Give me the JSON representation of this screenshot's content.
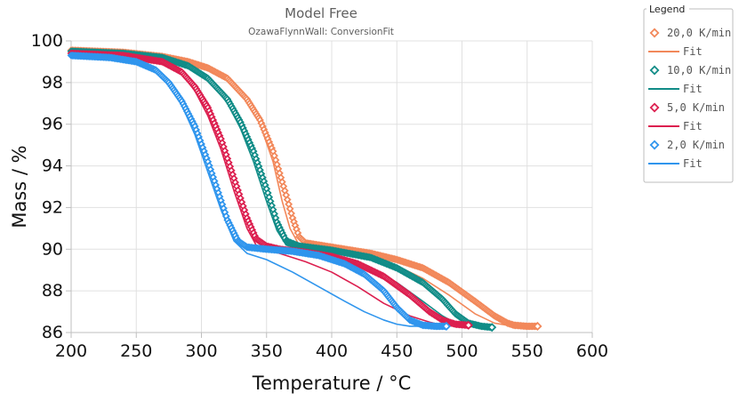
{
  "chart_data": {
    "type": "line",
    "title": "Model Free",
    "subtitle": "OzawaFlynnWall: ConversionFit",
    "xlabel": "Temperature / °C",
    "ylabel": "Mass / %",
    "xlim": [
      200,
      600
    ],
    "ylim": [
      86,
      100
    ],
    "x_ticks": [
      200,
      250,
      300,
      350,
      400,
      450,
      500,
      550,
      600
    ],
    "y_ticks": [
      86,
      88,
      90,
      92,
      94,
      96,
      98,
      100
    ],
    "x_tick_labels": [
      "200",
      "250",
      "300",
      "350",
      "400",
      "450",
      "500",
      "550",
      "600"
    ],
    "y_tick_labels": [
      "86",
      "88",
      "90",
      "92",
      "94",
      "96",
      "98",
      "100"
    ],
    "grid": true,
    "legend": {
      "title": "Legend",
      "placement": "right",
      "entries": [
        {
          "label": "20,0 K/min",
          "marker": "diamond",
          "color": "#f2885a"
        },
        {
          "label": "Fit",
          "marker": "line",
          "color": "#f2885a"
        },
        {
          "label": "10,0 K/min",
          "marker": "diamond",
          "color": "#118c87"
        },
        {
          "label": "Fit",
          "marker": "line",
          "color": "#118c87"
        },
        {
          "label": "5,0 K/min",
          "marker": "diamond",
          "color": "#dc1f4f"
        },
        {
          "label": "Fit",
          "marker": "line",
          "color": "#dc1f4f"
        },
        {
          "label": "2,0 K/min",
          "marker": "diamond",
          "color": "#2f95ed"
        },
        {
          "label": "Fit",
          "marker": "line",
          "color": "#2f95ed"
        }
      ]
    },
    "series": [
      {
        "name": "20,0 K/min",
        "kind": "marker",
        "color": "#f2885a",
        "x": [
          200,
          240,
          270,
          290,
          305,
          320,
          335,
          345,
          355,
          365,
          370,
          375,
          380,
          400,
          430,
          450,
          470,
          490,
          510,
          525,
          535,
          540,
          550,
          558
        ],
        "y": [
          99.55,
          99.45,
          99.25,
          99.0,
          98.7,
          98.2,
          97.2,
          96.2,
          94.7,
          92.6,
          91.5,
          90.6,
          90.3,
          90.1,
          89.8,
          89.5,
          89.1,
          88.4,
          87.5,
          86.8,
          86.45,
          86.35,
          86.3,
          86.3
        ]
      },
      {
        "name": "Fit",
        "kind": "line",
        "color": "#f2885a",
        "x": [
          200,
          240,
          270,
          290,
          305,
          320,
          335,
          345,
          355,
          362,
          368,
          375,
          380,
          400,
          430,
          450,
          470,
          490,
          510,
          525,
          535,
          540
        ],
        "y": [
          99.55,
          99.45,
          99.25,
          99.0,
          98.7,
          98.2,
          97.2,
          96.0,
          94.2,
          92.3,
          91.0,
          90.2,
          90.1,
          90.0,
          89.6,
          89.2,
          88.6,
          87.8,
          86.9,
          86.45,
          86.35,
          86.3
        ]
      },
      {
        "name": "10,0 K/min",
        "kind": "marker",
        "color": "#118c87",
        "x": [
          200,
          240,
          270,
          290,
          305,
          320,
          330,
          340,
          350,
          358,
          365,
          375,
          400,
          430,
          450,
          470,
          485,
          495,
          505,
          515,
          523
        ],
        "y": [
          99.5,
          99.4,
          99.2,
          98.8,
          98.2,
          97.2,
          96.1,
          94.7,
          92.9,
          91.3,
          90.4,
          90.15,
          89.95,
          89.6,
          89.1,
          88.4,
          87.6,
          86.9,
          86.45,
          86.3,
          86.25
        ]
      },
      {
        "name": "Fit",
        "kind": "line",
        "color": "#118c87",
        "x": [
          200,
          240,
          270,
          290,
          305,
          320,
          330,
          340,
          350,
          358,
          365,
          375,
          400,
          430,
          450,
          470,
          485,
          495,
          505,
          515
        ],
        "y": [
          99.5,
          99.4,
          99.2,
          98.8,
          98.2,
          97.0,
          95.8,
          94.2,
          92.3,
          90.9,
          90.2,
          90.0,
          89.7,
          89.1,
          88.4,
          87.5,
          86.8,
          86.45,
          86.3,
          86.25
        ]
      },
      {
        "name": "5,0 K/min",
        "kind": "marker",
        "color": "#dc1f4f",
        "x": [
          200,
          240,
          270,
          285,
          295,
          305,
          315,
          325,
          335,
          342,
          350,
          360,
          380,
          400,
          420,
          440,
          460,
          475,
          485,
          495,
          505
        ],
        "y": [
          99.4,
          99.3,
          99.0,
          98.5,
          97.8,
          96.8,
          95.3,
          93.4,
          91.5,
          90.5,
          90.15,
          90.0,
          89.85,
          89.65,
          89.3,
          88.7,
          87.8,
          87.0,
          86.6,
          86.4,
          86.35
        ]
      },
      {
        "name": "Fit",
        "kind": "line",
        "color": "#dc1f4f",
        "x": [
          200,
          240,
          270,
          285,
          295,
          305,
          315,
          325,
          335,
          342,
          350,
          360,
          380,
          400,
          420,
          440,
          460,
          475,
          485,
          495
        ],
        "y": [
          99.4,
          99.3,
          99.0,
          98.4,
          97.6,
          96.4,
          94.8,
          92.8,
          91.0,
          90.2,
          90.0,
          89.8,
          89.4,
          88.9,
          88.2,
          87.4,
          86.8,
          86.5,
          86.35,
          86.3
        ]
      },
      {
        "name": "2,0 K/min",
        "kind": "marker",
        "color": "#2f95ed",
        "x": [
          200,
          230,
          250,
          265,
          275,
          285,
          295,
          305,
          312,
          320,
          328,
          335,
          350,
          370,
          390,
          410,
          425,
          440,
          450,
          460,
          470,
          480,
          488
        ],
        "y": [
          99.3,
          99.2,
          99.0,
          98.6,
          98.0,
          97.1,
          95.9,
          94.2,
          92.9,
          91.4,
          90.4,
          90.1,
          90.0,
          89.9,
          89.7,
          89.3,
          88.8,
          88.0,
          87.2,
          86.6,
          86.35,
          86.3,
          86.3
        ]
      },
      {
        "name": "Fit",
        "kind": "line",
        "color": "#2f95ed",
        "x": [
          200,
          230,
          250,
          265,
          275,
          285,
          295,
          305,
          315,
          325,
          335,
          350,
          370,
          390,
          410,
          425,
          440,
          450,
          460,
          470
        ],
        "y": [
          99.3,
          99.2,
          99.0,
          98.5,
          97.9,
          96.9,
          95.5,
          93.7,
          91.9,
          90.4,
          89.8,
          89.5,
          88.9,
          88.2,
          87.5,
          87.0,
          86.6,
          86.4,
          86.3,
          86.3
        ]
      }
    ]
  }
}
